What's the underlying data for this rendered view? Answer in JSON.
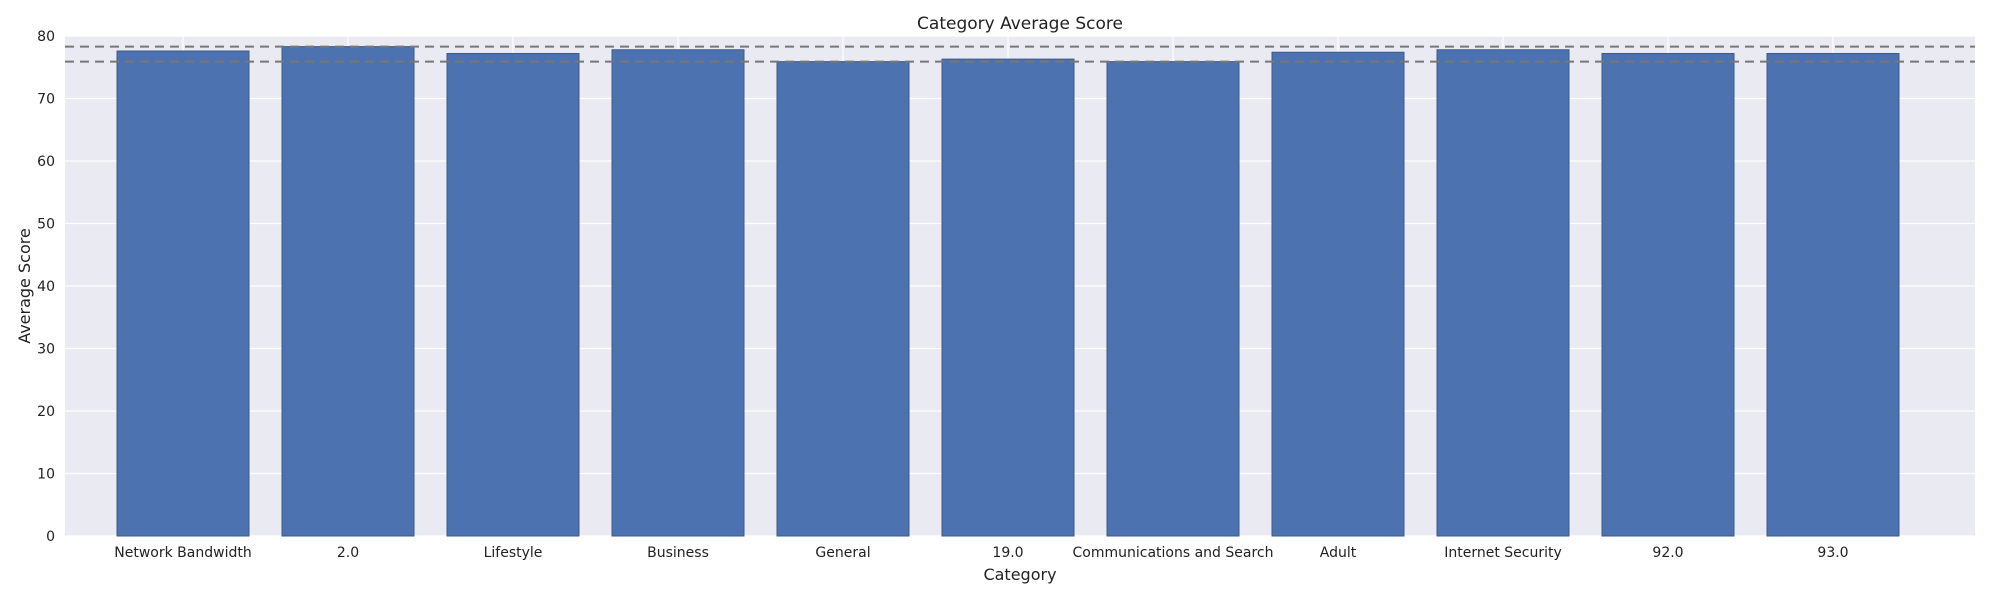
{
  "chart_data": {
    "type": "bar",
    "title": "Category Average Score",
    "xlabel": "Category",
    "ylabel": "Average Score",
    "categories": [
      "Network Bandwidth",
      "2.0",
      "Lifestyle",
      "Business",
      "General",
      "19.0",
      "Communications and Search",
      "Adult",
      "Internet Security",
      "92.0",
      "93.0"
    ],
    "values": [
      77.6,
      78.3,
      77.2,
      77.8,
      75.9,
      76.3,
      75.9,
      77.4,
      77.8,
      77.2,
      77.2
    ],
    "ylim": [
      0,
      80
    ],
    "yticks": [
      0,
      10,
      20,
      30,
      40,
      50,
      60,
      70,
      80
    ],
    "reference_lines": [
      78.3,
      75.9
    ],
    "grid": true,
    "colors": {
      "bar": "#4c72b0",
      "bar_edge": "#3b5a8c",
      "background": "#eaeaf2",
      "grid": "#ffffff",
      "reference_line": "#777777"
    }
  }
}
